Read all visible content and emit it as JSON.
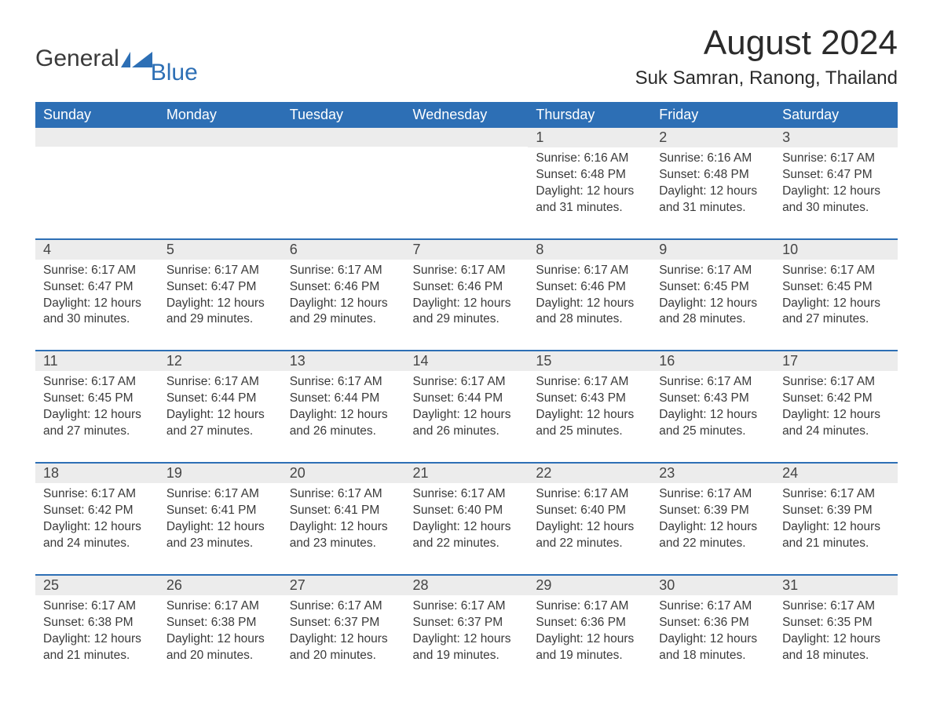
{
  "logo": {
    "text1": "General",
    "text2": "Blue",
    "brand_dark": "#3a3a3a",
    "brand_blue": "#2d6fb5"
  },
  "header": {
    "month_title": "August 2024",
    "location": "Suk Samran, Ranong, Thailand"
  },
  "calendar": {
    "day_headers": [
      "Sunday",
      "Monday",
      "Tuesday",
      "Wednesday",
      "Thursday",
      "Friday",
      "Saturday"
    ],
    "header_bg": "#2d6fb5",
    "header_fg": "#ffffff",
    "row_accent": "#2d6fb5",
    "daynum_bg": "#ececec",
    "text_color": "#3a3a3a",
    "weeks": [
      [
        {
          "day": "",
          "sunrise": "",
          "sunset": "",
          "daylight": ""
        },
        {
          "day": "",
          "sunrise": "",
          "sunset": "",
          "daylight": ""
        },
        {
          "day": "",
          "sunrise": "",
          "sunset": "",
          "daylight": ""
        },
        {
          "day": "",
          "sunrise": "",
          "sunset": "",
          "daylight": ""
        },
        {
          "day": "1",
          "sunrise": "Sunrise: 6:16 AM",
          "sunset": "Sunset: 6:48 PM",
          "daylight": "Daylight: 12 hours and 31 minutes."
        },
        {
          "day": "2",
          "sunrise": "Sunrise: 6:16 AM",
          "sunset": "Sunset: 6:48 PM",
          "daylight": "Daylight: 12 hours and 31 minutes."
        },
        {
          "day": "3",
          "sunrise": "Sunrise: 6:17 AM",
          "sunset": "Sunset: 6:47 PM",
          "daylight": "Daylight: 12 hours and 30 minutes."
        }
      ],
      [
        {
          "day": "4",
          "sunrise": "Sunrise: 6:17 AM",
          "sunset": "Sunset: 6:47 PM",
          "daylight": "Daylight: 12 hours and 30 minutes."
        },
        {
          "day": "5",
          "sunrise": "Sunrise: 6:17 AM",
          "sunset": "Sunset: 6:47 PM",
          "daylight": "Daylight: 12 hours and 29 minutes."
        },
        {
          "day": "6",
          "sunrise": "Sunrise: 6:17 AM",
          "sunset": "Sunset: 6:46 PM",
          "daylight": "Daylight: 12 hours and 29 minutes."
        },
        {
          "day": "7",
          "sunrise": "Sunrise: 6:17 AM",
          "sunset": "Sunset: 6:46 PM",
          "daylight": "Daylight: 12 hours and 29 minutes."
        },
        {
          "day": "8",
          "sunrise": "Sunrise: 6:17 AM",
          "sunset": "Sunset: 6:46 PM",
          "daylight": "Daylight: 12 hours and 28 minutes."
        },
        {
          "day": "9",
          "sunrise": "Sunrise: 6:17 AM",
          "sunset": "Sunset: 6:45 PM",
          "daylight": "Daylight: 12 hours and 28 minutes."
        },
        {
          "day": "10",
          "sunrise": "Sunrise: 6:17 AM",
          "sunset": "Sunset: 6:45 PM",
          "daylight": "Daylight: 12 hours and 27 minutes."
        }
      ],
      [
        {
          "day": "11",
          "sunrise": "Sunrise: 6:17 AM",
          "sunset": "Sunset: 6:45 PM",
          "daylight": "Daylight: 12 hours and 27 minutes."
        },
        {
          "day": "12",
          "sunrise": "Sunrise: 6:17 AM",
          "sunset": "Sunset: 6:44 PM",
          "daylight": "Daylight: 12 hours and 27 minutes."
        },
        {
          "day": "13",
          "sunrise": "Sunrise: 6:17 AM",
          "sunset": "Sunset: 6:44 PM",
          "daylight": "Daylight: 12 hours and 26 minutes."
        },
        {
          "day": "14",
          "sunrise": "Sunrise: 6:17 AM",
          "sunset": "Sunset: 6:44 PM",
          "daylight": "Daylight: 12 hours and 26 minutes."
        },
        {
          "day": "15",
          "sunrise": "Sunrise: 6:17 AM",
          "sunset": "Sunset: 6:43 PM",
          "daylight": "Daylight: 12 hours and 25 minutes."
        },
        {
          "day": "16",
          "sunrise": "Sunrise: 6:17 AM",
          "sunset": "Sunset: 6:43 PM",
          "daylight": "Daylight: 12 hours and 25 minutes."
        },
        {
          "day": "17",
          "sunrise": "Sunrise: 6:17 AM",
          "sunset": "Sunset: 6:42 PM",
          "daylight": "Daylight: 12 hours and 24 minutes."
        }
      ],
      [
        {
          "day": "18",
          "sunrise": "Sunrise: 6:17 AM",
          "sunset": "Sunset: 6:42 PM",
          "daylight": "Daylight: 12 hours and 24 minutes."
        },
        {
          "day": "19",
          "sunrise": "Sunrise: 6:17 AM",
          "sunset": "Sunset: 6:41 PM",
          "daylight": "Daylight: 12 hours and 23 minutes."
        },
        {
          "day": "20",
          "sunrise": "Sunrise: 6:17 AM",
          "sunset": "Sunset: 6:41 PM",
          "daylight": "Daylight: 12 hours and 23 minutes."
        },
        {
          "day": "21",
          "sunrise": "Sunrise: 6:17 AM",
          "sunset": "Sunset: 6:40 PM",
          "daylight": "Daylight: 12 hours and 22 minutes."
        },
        {
          "day": "22",
          "sunrise": "Sunrise: 6:17 AM",
          "sunset": "Sunset: 6:40 PM",
          "daylight": "Daylight: 12 hours and 22 minutes."
        },
        {
          "day": "23",
          "sunrise": "Sunrise: 6:17 AM",
          "sunset": "Sunset: 6:39 PM",
          "daylight": "Daylight: 12 hours and 22 minutes."
        },
        {
          "day": "24",
          "sunrise": "Sunrise: 6:17 AM",
          "sunset": "Sunset: 6:39 PM",
          "daylight": "Daylight: 12 hours and 21 minutes."
        }
      ],
      [
        {
          "day": "25",
          "sunrise": "Sunrise: 6:17 AM",
          "sunset": "Sunset: 6:38 PM",
          "daylight": "Daylight: 12 hours and 21 minutes."
        },
        {
          "day": "26",
          "sunrise": "Sunrise: 6:17 AM",
          "sunset": "Sunset: 6:38 PM",
          "daylight": "Daylight: 12 hours and 20 minutes."
        },
        {
          "day": "27",
          "sunrise": "Sunrise: 6:17 AM",
          "sunset": "Sunset: 6:37 PM",
          "daylight": "Daylight: 12 hours and 20 minutes."
        },
        {
          "day": "28",
          "sunrise": "Sunrise: 6:17 AM",
          "sunset": "Sunset: 6:37 PM",
          "daylight": "Daylight: 12 hours and 19 minutes."
        },
        {
          "day": "29",
          "sunrise": "Sunrise: 6:17 AM",
          "sunset": "Sunset: 6:36 PM",
          "daylight": "Daylight: 12 hours and 19 minutes."
        },
        {
          "day": "30",
          "sunrise": "Sunrise: 6:17 AM",
          "sunset": "Sunset: 6:36 PM",
          "daylight": "Daylight: 12 hours and 18 minutes."
        },
        {
          "day": "31",
          "sunrise": "Sunrise: 6:17 AM",
          "sunset": "Sunset: 6:35 PM",
          "daylight": "Daylight: 12 hours and 18 minutes."
        }
      ]
    ]
  }
}
